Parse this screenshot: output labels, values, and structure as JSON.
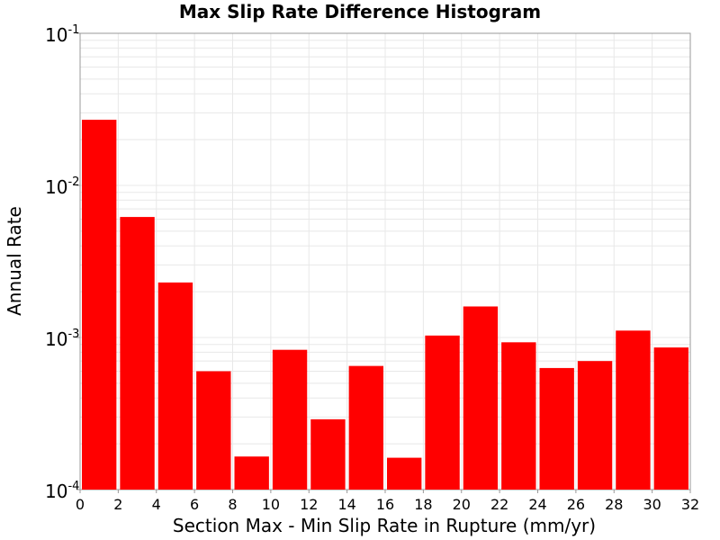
{
  "chart_data": {
    "type": "bar",
    "title": "Max Slip Rate Difference Histogram",
    "xlabel": "Section Max - Min Slip Rate in Rupture (mm/yr)",
    "ylabel": "Annual Rate",
    "y_scale": "log",
    "xlim": [
      0,
      32
    ],
    "ylim": [
      0.0001,
      0.1
    ],
    "xticks": [
      "0",
      "2",
      "4",
      "6",
      "8",
      "10",
      "12",
      "14",
      "16",
      "18",
      "20",
      "22",
      "24",
      "26",
      "28",
      "30",
      "32"
    ],
    "yticks": [
      {
        "base": "10",
        "exp": "-1",
        "value": 0.1
      },
      {
        "base": "10",
        "exp": "-2",
        "value": 0.01
      },
      {
        "base": "10",
        "exp": "-3",
        "value": 0.001
      },
      {
        "base": "10",
        "exp": "-4",
        "value": 0.0001
      }
    ],
    "bar_color": "#ff0000",
    "grid": true,
    "bins": [
      {
        "x0": 0,
        "x1": 2,
        "value": 0.027
      },
      {
        "x0": 2,
        "x1": 4,
        "value": 0.0062
      },
      {
        "x0": 4,
        "x1": 6,
        "value": 0.0023
      },
      {
        "x0": 6,
        "x1": 8,
        "value": 0.0006
      },
      {
        "x0": 8,
        "x1": 10,
        "value": 0.000165
      },
      {
        "x0": 10,
        "x1": 12,
        "value": 0.00083
      },
      {
        "x0": 12,
        "x1": 14,
        "value": 0.00029
      },
      {
        "x0": 14,
        "x1": 16,
        "value": 0.00065
      },
      {
        "x0": 16,
        "x1": 18,
        "value": 0.000162
      },
      {
        "x0": 18,
        "x1": 20,
        "value": 0.00103
      },
      {
        "x0": 20,
        "x1": 22,
        "value": 0.0016
      },
      {
        "x0": 22,
        "x1": 24,
        "value": 0.00093
      },
      {
        "x0": 24,
        "x1": 26,
        "value": 0.00063
      },
      {
        "x0": 26,
        "x1": 28,
        "value": 0.0007
      },
      {
        "x0": 28,
        "x1": 30,
        "value": 0.00111
      },
      {
        "x0": 30,
        "x1": 32,
        "value": 0.00086
      }
    ]
  }
}
